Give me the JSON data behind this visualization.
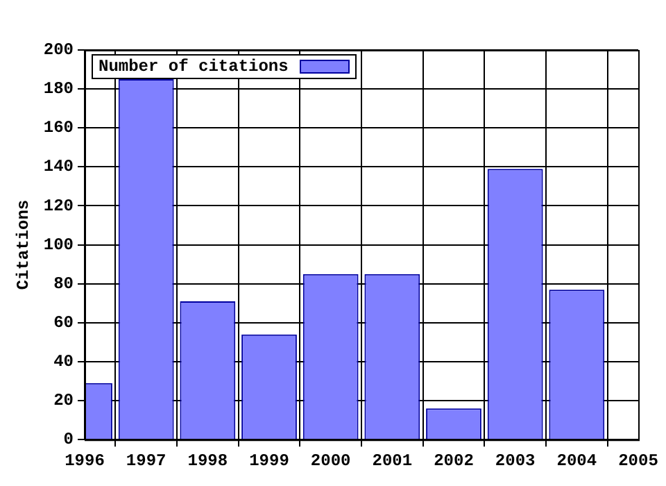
{
  "chart_data": {
    "type": "bar",
    "ylabel": "Citations",
    "x": [
      1996,
      1997,
      1998,
      1999,
      2000,
      2001,
      2002,
      2003,
      2004
    ],
    "series": [
      {
        "name": "Number of citations",
        "color": "#8080ff",
        "values": [
          29,
          185,
          71,
          54,
          85,
          85,
          16,
          139,
          77
        ]
      }
    ],
    "xlim": [
      1996,
      2005
    ],
    "xticks": [
      1996,
      1997,
      1998,
      1999,
      2000,
      2001,
      2002,
      2003,
      2004,
      2005
    ],
    "ylim": [
      0,
      200
    ],
    "yticks": [
      0,
      20,
      40,
      60,
      80,
      100,
      120,
      140,
      160,
      180,
      200
    ],
    "grid": true,
    "legend": "top left"
  }
}
